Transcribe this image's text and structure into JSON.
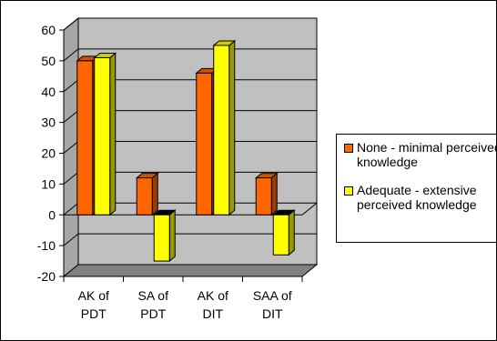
{
  "chart_data": {
    "type": "bar",
    "categories": [
      [
        "AK of",
        "PDT"
      ],
      [
        "SA of",
        "PDT"
      ],
      [
        "AK of",
        "DIT"
      ],
      [
        "SAA of",
        "DIT"
      ]
    ],
    "series": [
      {
        "name": "None - minimal perceived knowledge",
        "values": [
          50,
          12,
          46,
          12
        ],
        "color": "#ff6600"
      },
      {
        "name": "Adequate - extensive perceived knowledge",
        "values": [
          51,
          -15,
          55,
          -13
        ],
        "color": "#ffff00"
      }
    ],
    "ylim": [
      -20,
      60
    ],
    "yticks": [
      60,
      50,
      40,
      30,
      20,
      10,
      0,
      -10,
      -20
    ],
    "grid": true,
    "legend_position": "right",
    "plot_wall_color": "#c0c0c0",
    "plot_floor_color": "#808080",
    "title": "",
    "xlabel": "",
    "ylabel": ""
  }
}
